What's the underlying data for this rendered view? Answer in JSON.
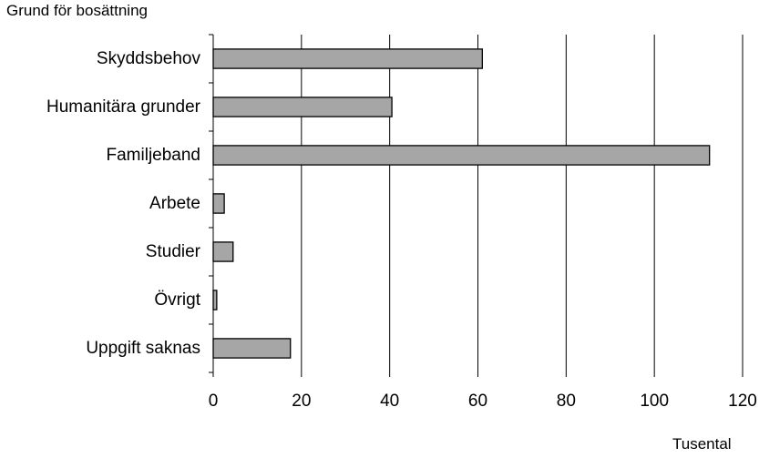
{
  "chart_data": {
    "type": "bar",
    "orientation": "horizontal",
    "title": "Grund för bosättning",
    "xlabel": "Tusental",
    "ylabel": "",
    "categories": [
      "Skyddsbehov",
      "Humanitära grunder",
      "Familjeband",
      "Arbete",
      "Studier",
      "Övrigt",
      "Uppgift saknas"
    ],
    "values": [
      61,
      40.5,
      112.5,
      2.5,
      4.5,
      0.8,
      17.5
    ],
    "xlim": [
      0,
      120
    ],
    "xticks": [
      0,
      20,
      40,
      60,
      80,
      100,
      120
    ],
    "grid": "vertical",
    "bar_color": "#a6a6a6",
    "bar_border_color": "#000000",
    "legend": "none"
  }
}
